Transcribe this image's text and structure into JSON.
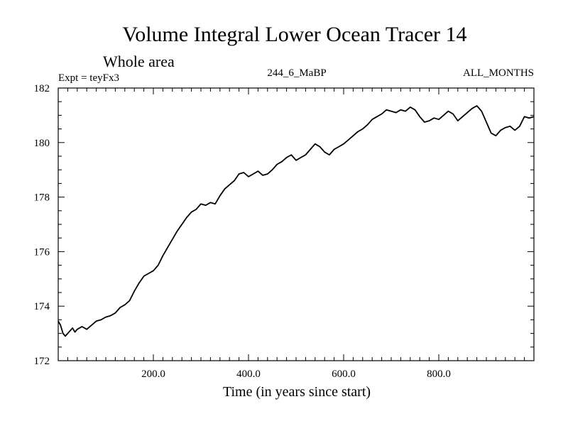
{
  "chart_data": {
    "type": "line",
    "title": "Volume Integral Lower Ocean Tracer 14",
    "subtitle": "Whole area",
    "left_label": "Expt = teyFx3",
    "center_label": "244_6_MaBP",
    "right_label": "ALL_MONTHS",
    "xlabel": "Time (in years since start)",
    "ylabel": "",
    "xlim": [
      0,
      1000
    ],
    "ylim": [
      172,
      182
    ],
    "x_ticks": [
      200,
      400,
      600,
      800
    ],
    "x_tick_labels": [
      "200.0",
      "400.0",
      "600.0",
      "800.0"
    ],
    "y_ticks": [
      172,
      174,
      176,
      178,
      180,
      182
    ],
    "y_tick_labels": [
      "172",
      "174",
      "176",
      "178",
      "180",
      "182"
    ],
    "grid": false,
    "series": [
      {
        "name": "Volume Integral Lower Ocean Tracer 14",
        "color": "#000000",
        "x": [
          0,
          5,
          10,
          15,
          20,
          25,
          30,
          35,
          40,
          50,
          60,
          70,
          80,
          90,
          100,
          110,
          120,
          130,
          140,
          150,
          160,
          170,
          180,
          190,
          200,
          210,
          220,
          230,
          240,
          250,
          260,
          270,
          280,
          290,
          300,
          310,
          320,
          330,
          340,
          350,
          360,
          370,
          380,
          390,
          400,
          410,
          420,
          430,
          440,
          450,
          460,
          470,
          480,
          490,
          500,
          510,
          520,
          530,
          540,
          550,
          560,
          570,
          580,
          590,
          600,
          610,
          620,
          630,
          640,
          650,
          660,
          670,
          680,
          690,
          700,
          710,
          720,
          730,
          740,
          750,
          760,
          770,
          780,
          790,
          800,
          810,
          820,
          830,
          840,
          850,
          860,
          870,
          880,
          890,
          900,
          910,
          920,
          930,
          940,
          950,
          960,
          970,
          980,
          990,
          1000
        ],
        "values": [
          173.45,
          173.3,
          173.0,
          172.9,
          173.0,
          173.1,
          173.2,
          173.05,
          173.15,
          173.25,
          173.15,
          173.3,
          173.45,
          173.5,
          173.6,
          173.65,
          173.75,
          173.95,
          174.05,
          174.2,
          174.55,
          174.85,
          175.1,
          175.2,
          175.3,
          175.5,
          175.85,
          176.15,
          176.45,
          176.75,
          177.0,
          177.25,
          177.45,
          177.55,
          177.75,
          177.7,
          177.8,
          177.75,
          178.05,
          178.3,
          178.45,
          178.6,
          178.85,
          178.9,
          178.75,
          178.85,
          178.95,
          178.8,
          178.85,
          179.0,
          179.2,
          179.3,
          179.45,
          179.55,
          179.35,
          179.45,
          179.55,
          179.75,
          179.95,
          179.85,
          179.65,
          179.55,
          179.75,
          179.85,
          179.95,
          180.1,
          180.25,
          180.4,
          180.5,
          180.65,
          180.85,
          180.95,
          181.05,
          181.2,
          181.15,
          181.1,
          181.2,
          181.15,
          181.3,
          181.2,
          180.95,
          180.75,
          180.8,
          180.9,
          180.85,
          181.0,
          181.15,
          181.05,
          180.8,
          180.95,
          181.1,
          181.25,
          181.35,
          181.15,
          180.75,
          180.35,
          180.25,
          180.45,
          180.55,
          180.6,
          180.45,
          180.6,
          180.95,
          180.9,
          180.95
        ]
      }
    ]
  }
}
